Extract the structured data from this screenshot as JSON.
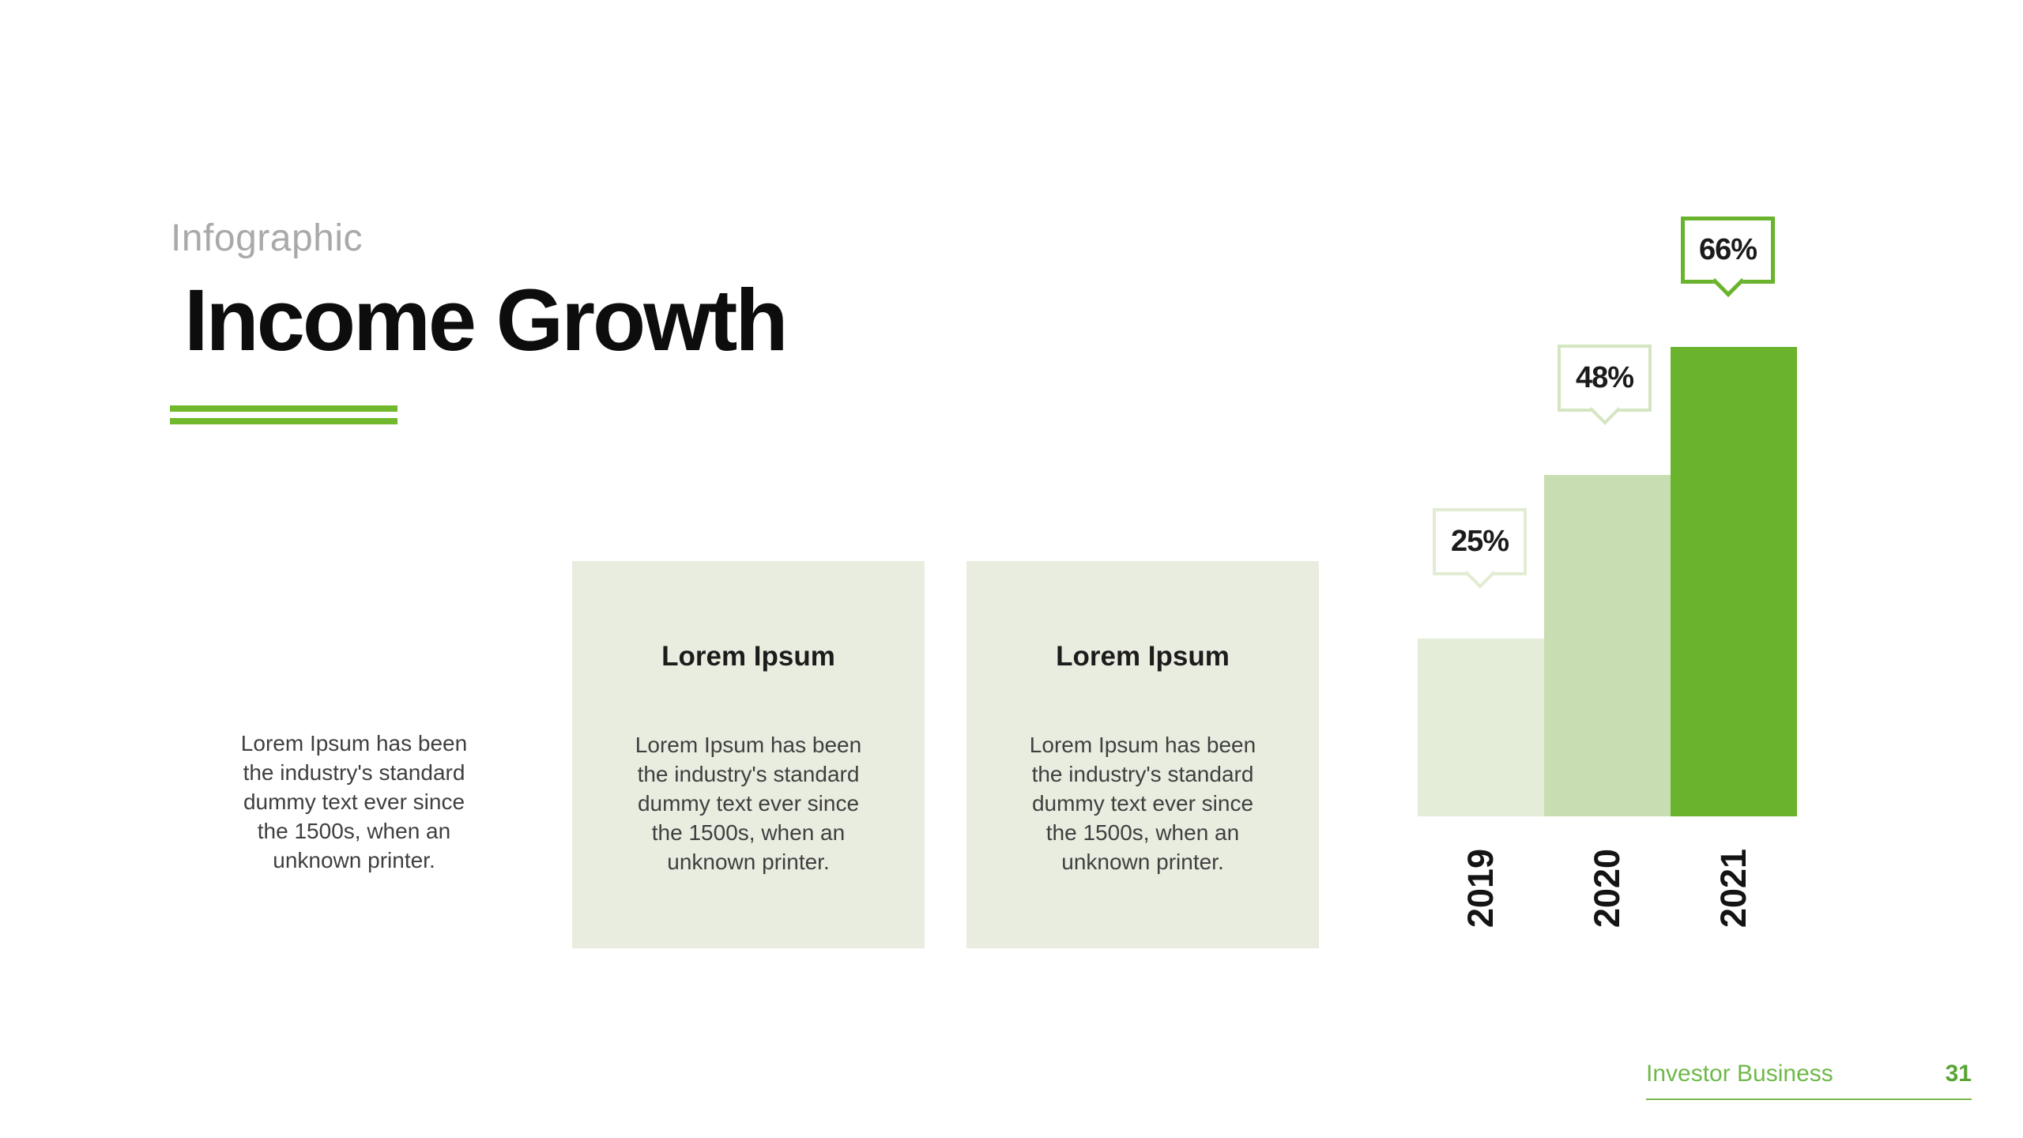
{
  "slide": {
    "kicker": "Infographic",
    "title": "Income Growth",
    "footer": {
      "label": "Investor Business",
      "page": "31"
    }
  },
  "cards": [
    {
      "heading": "",
      "body": "Lorem Ipsum has been\nthe industry's standard\ndummy text ever since\nthe 1500s, when an\nunknown printer."
    },
    {
      "heading": "Lorem Ipsum",
      "body": "Lorem Ipsum has been\nthe industry's standard\ndummy text ever since\nthe 1500s, when an\nunknown printer."
    },
    {
      "heading": "Lorem Ipsum",
      "body": "Lorem Ipsum has been\nthe industry's standard\ndummy text ever since\nthe 1500s, when an\nunknown printer."
    }
  ],
  "chart_data": {
    "type": "bar",
    "categories": [
      "2019",
      "2020",
      "2021"
    ],
    "values": [
      25,
      48,
      66
    ],
    "labels": [
      "25%",
      "48%",
      "66%"
    ],
    "title": "Income Growth",
    "xlabel": "",
    "ylabel": "",
    "ylim": [
      0,
      100
    ],
    "unit": "%",
    "grid": false,
    "legend": "none",
    "orientation": "vertical",
    "category_label_rotation_deg": -90,
    "bar_colors": [
      "#e4edd8",
      "#c9ddb3",
      "#6ab32d"
    ],
    "callout_border_colors": [
      "#e2ecd4",
      "#d5e5c2",
      "#6ab32d"
    ]
  },
  "colors": {
    "accent_green": "#6ab32d",
    "rule_green": "#72b82d",
    "footer_green": "#6fb84a",
    "card_background": "#e9ede0",
    "kicker_gray": "#a9a9a9",
    "body_text": "#3f3f3f",
    "heading_text": "#1c1c1c"
  }
}
